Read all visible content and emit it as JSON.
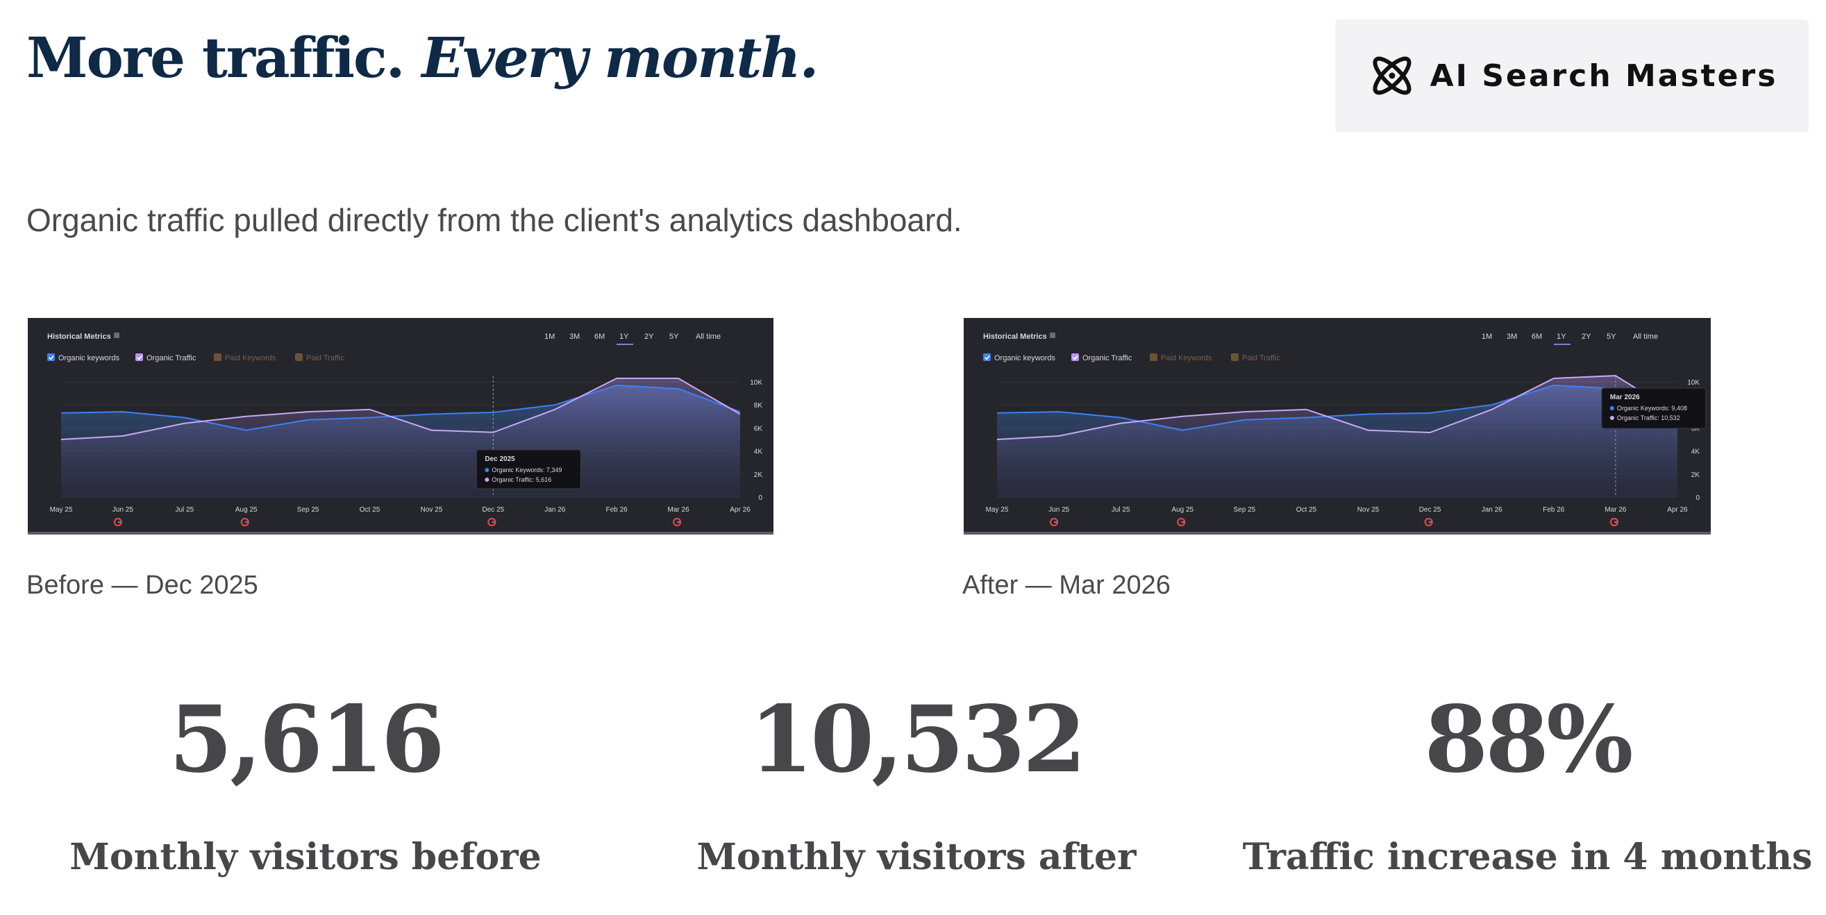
{
  "header": {
    "headline_main": "More traffic.",
    "headline_em": "Every month.",
    "brand_name": "AI Search Masters"
  },
  "subtitle": "Organic traffic pulled directly from the client's analytics dashboard.",
  "charts": [
    {
      "caption": "Before — Dec 2025",
      "panel_title": "Historical Metrics",
      "time_ranges": [
        "1M",
        "3M",
        "6M",
        "1Y",
        "2Y",
        "5Y",
        "All time"
      ],
      "active_range": "1Y",
      "legend": [
        {
          "label": "Organic keywords",
          "checked": true,
          "color": "#3b82f6"
        },
        {
          "label": "Organic Traffic",
          "checked": true,
          "color": "#b794f4"
        },
        {
          "label": "Paid Keywords",
          "checked": false,
          "color": "#8a6540"
        },
        {
          "label": "Paid Traffic",
          "checked": false,
          "color": "#8a6540"
        }
      ],
      "x_labels": [
        "May 25",
        "Jun 25",
        "Jul 25",
        "Aug 25",
        "Sep 25",
        "Oct 25",
        "Nov 25",
        "Dec 25",
        "Jan 26",
        "Feb 26",
        "Mar 26",
        "Apr 26"
      ],
      "y_labels": [
        "10K",
        "8K",
        "6K",
        "4K",
        "2K",
        "0"
      ],
      "series_keywords": [
        7300,
        7400,
        6900,
        5800,
        6700,
        6900,
        7200,
        7349,
        8000,
        9700,
        9400,
        7400
      ],
      "series_traffic": [
        5000,
        5300,
        6400,
        7000,
        7400,
        7600,
        5800,
        5616,
        7600,
        10300,
        10300,
        7200
      ],
      "tooltip": {
        "title": "Dec 2025",
        "line1": "Organic Keywords: 7,349",
        "line2": "Organic Traffic: 5,616",
        "index": 7
      }
    },
    {
      "caption": "After — Mar 2026",
      "panel_title": "Historical Metrics",
      "time_ranges": [
        "1M",
        "3M",
        "6M",
        "1Y",
        "2Y",
        "5Y",
        "All time"
      ],
      "active_range": "1Y",
      "legend": [
        {
          "label": "Organic keywords",
          "checked": true,
          "color": "#3b82f6"
        },
        {
          "label": "Organic Traffic",
          "checked": true,
          "color": "#b794f4"
        },
        {
          "label": "Paid Keywords",
          "checked": false,
          "color": "#8a6540"
        },
        {
          "label": "Paid Traffic",
          "checked": false,
          "color": "#8a6540"
        }
      ],
      "x_labels": [
        "May 25",
        "Jun 25",
        "Jul 25",
        "Aug 25",
        "Sep 25",
        "Oct 25",
        "Nov 25",
        "Dec 25",
        "Jan 26",
        "Feb 26",
        "Mar 26",
        "Apr 26"
      ],
      "y_labels": [
        "10K",
        "8K",
        "6K",
        "4K",
        "2K",
        "0"
      ],
      "series_keywords": [
        7300,
        7400,
        6900,
        5800,
        6700,
        6900,
        7200,
        7300,
        8000,
        9700,
        9408,
        7400
      ],
      "series_traffic": [
        5000,
        5300,
        6400,
        7000,
        7400,
        7600,
        5800,
        5600,
        7600,
        10300,
        10532,
        7200
      ],
      "tooltip": {
        "title": "Mar 2026",
        "line1": "Organic Keywords: 9,408",
        "line2": "Organic Traffic: 10,532",
        "index": 10
      }
    }
  ],
  "stats": [
    {
      "value": "5,616",
      "label": "Monthly visitors before"
    },
    {
      "value": "10,532",
      "label": "Monthly visitors after"
    },
    {
      "value": "88%",
      "label": "Traffic increase in 4 months"
    }
  ]
}
